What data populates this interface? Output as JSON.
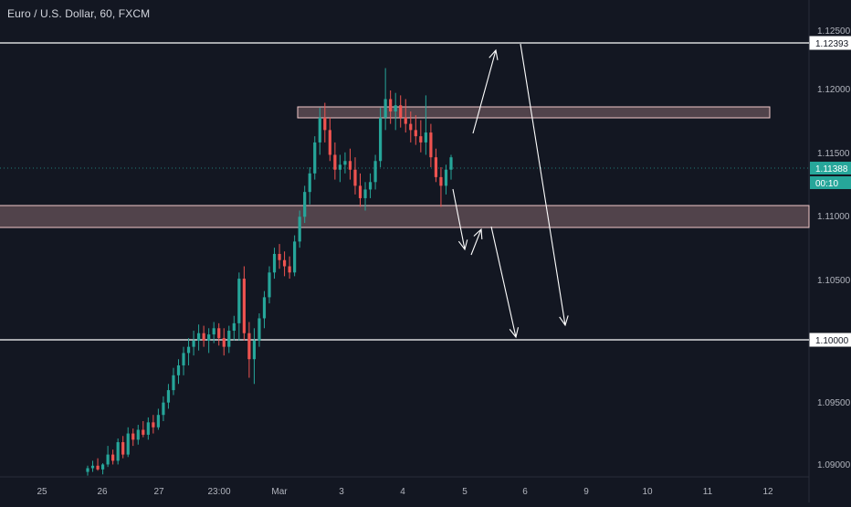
{
  "header": {
    "title": "Euro / U.S. Dollar, 60, FXCM"
  },
  "colors": {
    "background": "#131722",
    "axis_text": "#b2b5be",
    "up": "#26a69a",
    "down": "#ef5350",
    "line": "#ffffff",
    "zone_fill": "#5d4b52",
    "zone_border": "#f2c9c9",
    "price_badge": "#26a69a"
  },
  "chart_data": {
    "type": "candlestick",
    "title": "Euro / U.S. Dollar, 60, FXCM",
    "ylim": [
      1.088,
      1.1265
    ],
    "y_ticks": [
      "1.12500",
      "1.12000",
      "1.11500",
      "1.11000",
      "1.10500",
      "1.10000",
      "1.09500",
      "1.09000"
    ],
    "x_ticks": [
      "25",
      "26",
      "27",
      "23:00",
      "Mar",
      "3",
      "4",
      "5",
      "6",
      "9",
      "10",
      "11",
      "12"
    ],
    "price_labels": {
      "upper_line": "1.12393",
      "current": "1.11388",
      "countdown": "00:10",
      "lower_line": "1.10000"
    },
    "horizontal_lines": [
      1.12393,
      1.1
    ],
    "zones": [
      {
        "from": 1.1179,
        "to": 1.1187,
        "x_start": "2",
        "x_end": "11.5"
      },
      {
        "from": 1.109,
        "to": 1.1108,
        "x_start": "24",
        "x_end": "13"
      }
    ],
    "candle_series": {
      "start_index": 0,
      "step": 4.2,
      "ohlc": [
        [
          1.0884,
          1.0889,
          1.0881,
          1.0887
        ],
        [
          1.0887,
          1.0893,
          1.0884,
          1.0889
        ],
        [
          1.0889,
          1.0895,
          1.0885,
          1.0886
        ],
        [
          1.0886,
          1.0891,
          1.0882,
          1.089
        ],
        [
          1.089,
          1.0905,
          1.0888,
          1.0898
        ],
        [
          1.0898,
          1.0902,
          1.089,
          1.0893
        ],
        [
          1.0893,
          1.0911,
          1.089,
          1.0908
        ],
        [
          1.0908,
          1.0913,
          1.0895,
          1.0898
        ],
        [
          1.0898,
          1.092,
          1.0896,
          1.0915
        ],
        [
          1.0915,
          1.0919,
          1.0905,
          1.091
        ],
        [
          1.091,
          1.0922,
          1.0906,
          1.0918
        ],
        [
          1.0918,
          1.0925,
          1.0912,
          1.0914
        ],
        [
          1.0914,
          1.0928,
          1.091,
          1.0924
        ],
        [
          1.0924,
          1.093,
          1.0915,
          1.092
        ],
        [
          1.092,
          1.0935,
          1.0918,
          1.093
        ],
        [
          1.093,
          1.0945,
          1.0925,
          1.094
        ],
        [
          1.094,
          1.0955,
          1.0935,
          1.095
        ],
        [
          1.095,
          1.0968,
          1.0946,
          1.0962
        ],
        [
          1.0962,
          1.0975,
          1.0955,
          1.097
        ],
        [
          1.097,
          1.0985,
          1.0962,
          1.098
        ],
        [
          1.098,
          1.0992,
          1.097,
          1.0985
        ],
        [
          1.0985,
          1.0998,
          1.0978,
          1.099
        ],
        [
          1.099,
          1.1003,
          1.0982,
          1.0996
        ],
        [
          1.0996,
          1.1002,
          1.0985,
          1.099
        ],
        [
          1.099,
          1.1,
          1.098,
          1.0995
        ],
        [
          1.0995,
          1.1005,
          1.0988,
          1.1
        ],
        [
          1.1,
          1.1004,
          1.0986,
          1.0992
        ],
        [
          1.0992,
          1.1,
          1.0978,
          1.0985
        ],
        [
          1.0985,
          1.1002,
          1.098,
          1.0998
        ],
        [
          1.0998,
          1.101,
          1.099,
          1.1004
        ],
        [
          1.1004,
          1.1045,
          1.099,
          1.104
        ],
        [
          1.104,
          1.105,
          1.099,
          1.0996
        ],
        [
          1.0996,
          1.1005,
          1.096,
          1.0975
        ],
        [
          1.0975,
          1.1,
          1.0955,
          1.099
        ],
        [
          1.099,
          1.1012,
          1.0985,
          1.1008
        ],
        [
          1.1008,
          1.103,
          1.1,
          1.1025
        ],
        [
          1.1025,
          1.105,
          1.102,
          1.1045
        ],
        [
          1.1045,
          1.1065,
          1.104,
          1.106
        ],
        [
          1.106,
          1.1068,
          1.1048,
          1.1055
        ],
        [
          1.1055,
          1.1062,
          1.1042,
          1.105
        ],
        [
          1.105,
          1.1058,
          1.104,
          1.1045
        ],
        [
          1.1045,
          1.1075,
          1.1042,
          1.107
        ],
        [
          1.107,
          1.1095,
          1.1065,
          1.109
        ],
        [
          1.109,
          1.1115,
          1.1085,
          1.111
        ],
        [
          1.111,
          1.113,
          1.11,
          1.1125
        ],
        [
          1.1125,
          1.1155,
          1.112,
          1.115
        ],
        [
          1.115,
          1.1178,
          1.114,
          1.117
        ],
        [
          1.117,
          1.1182,
          1.115,
          1.116
        ],
        [
          1.116,
          1.117,
          1.1135,
          1.114
        ],
        [
          1.114,
          1.115,
          1.112,
          1.1128
        ],
        [
          1.1128,
          1.114,
          1.1118,
          1.1132
        ],
        [
          1.1132,
          1.1142,
          1.1125,
          1.1135
        ],
        [
          1.1135,
          1.1145,
          1.112,
          1.1128
        ],
        [
          1.1128,
          1.1138,
          1.1108,
          1.1115
        ],
        [
          1.1115,
          1.1125,
          1.1098,
          1.1105
        ],
        [
          1.1105,
          1.1118,
          1.1095,
          1.1112
        ],
        [
          1.1112,
          1.1125,
          1.1105,
          1.1118
        ],
        [
          1.1118,
          1.114,
          1.1112,
          1.1135
        ],
        [
          1.1135,
          1.1178,
          1.113,
          1.117
        ],
        [
          1.117,
          1.121,
          1.116,
          1.1185
        ],
        [
          1.1185,
          1.1192,
          1.1165,
          1.1175
        ],
        [
          1.1175,
          1.119,
          1.116,
          1.118
        ],
        [
          1.118,
          1.1188,
          1.1162,
          1.117
        ],
        [
          1.117,
          1.1185,
          1.1158,
          1.1165
        ],
        [
          1.1165,
          1.1175,
          1.115,
          1.116
        ],
        [
          1.116,
          1.1172,
          1.1148,
          1.1155
        ],
        [
          1.1155,
          1.1168,
          1.1142,
          1.115
        ],
        [
          1.115,
          1.1188,
          1.114,
          1.1158
        ],
        [
          1.1158,
          1.1165,
          1.113,
          1.1138
        ],
        [
          1.1138,
          1.1145,
          1.1118,
          1.1122
        ],
        [
          1.1122,
          1.113,
          1.1098,
          1.1115
        ],
        [
          1.1115,
          1.1132,
          1.1108,
          1.1128
        ],
        [
          1.1128,
          1.114,
          1.112,
          1.1138
        ]
      ]
    }
  }
}
